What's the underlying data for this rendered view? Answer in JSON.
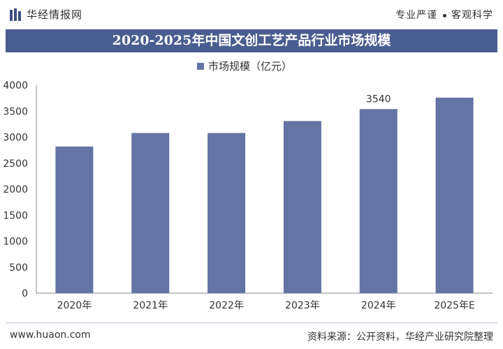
{
  "header": {
    "brand": "华经情报网",
    "slogan_left": "专业严谨",
    "slogan_right": "客观科学"
  },
  "title": "2020-2025年中国文创工艺产品行业市场规模",
  "footer": {
    "website": "www.huaon.com",
    "source": "资料来源：公开资料，华经产业研究院整理"
  },
  "colors": {
    "bar": "#6474a4",
    "title_bg": "#4a5d90"
  },
  "chart_data": {
    "type": "bar",
    "categories": [
      "2020年",
      "2021年",
      "2022年",
      "2023年",
      "2024年",
      "2025年E"
    ],
    "series": [
      {
        "name": "市场规模（亿元）",
        "values": [
          2820,
          3080,
          3080,
          3310,
          3540,
          3760
        ]
      }
    ],
    "data_labels": [
      {
        "index": 4,
        "text": "3540"
      }
    ],
    "ylim": [
      0,
      4000
    ],
    "yticks": [
      0,
      500,
      1000,
      1500,
      2000,
      2500,
      3000,
      3500,
      4000
    ],
    "legend": "top-center",
    "grid": false,
    "xlabel": "",
    "ylabel": ""
  }
}
